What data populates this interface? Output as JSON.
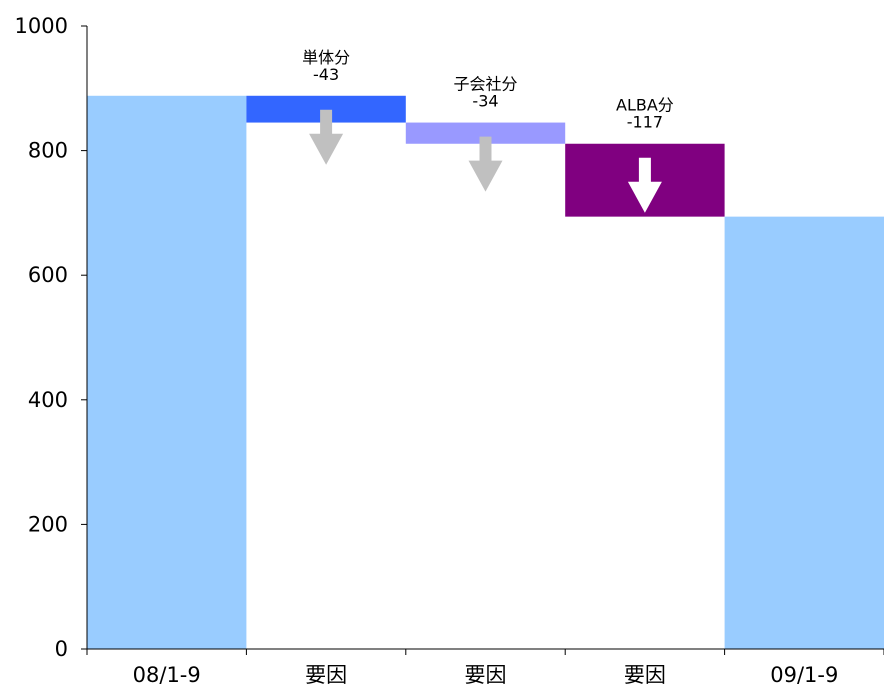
{
  "chart_data": {
    "type": "bar",
    "subtype": "waterfall",
    "categories": [
      "08/1-9",
      "要因",
      "要因",
      "要因",
      "09/1-9"
    ],
    "ylim": [
      0,
      1000
    ],
    "yticks": [
      0,
      200,
      400,
      600,
      800,
      1000
    ],
    "grid": false,
    "bars": [
      {
        "category": "08/1-9",
        "base": 0,
        "value": 888,
        "color": "#99ccff",
        "label": "",
        "delta": ""
      },
      {
        "category": "要因",
        "base": 845,
        "value": 43,
        "color": "#3366ff",
        "label": "単体分",
        "delta": "-43",
        "arrow_color": "#c0c0c0"
      },
      {
        "category": "要因",
        "base": 811,
        "value": 34,
        "color": "#9999ff",
        "label": "子会社分",
        "delta": "-34",
        "arrow_color": "#c0c0c0"
      },
      {
        "category": "要因",
        "base": 694,
        "value": 117,
        "color": "#800080",
        "label": "ALBA分",
        "delta": "-117",
        "arrow_color": "#ffffff"
      },
      {
        "category": "09/1-9",
        "base": 0,
        "value": 694,
        "color": "#99ccff",
        "label": "",
        "delta": ""
      }
    ]
  }
}
